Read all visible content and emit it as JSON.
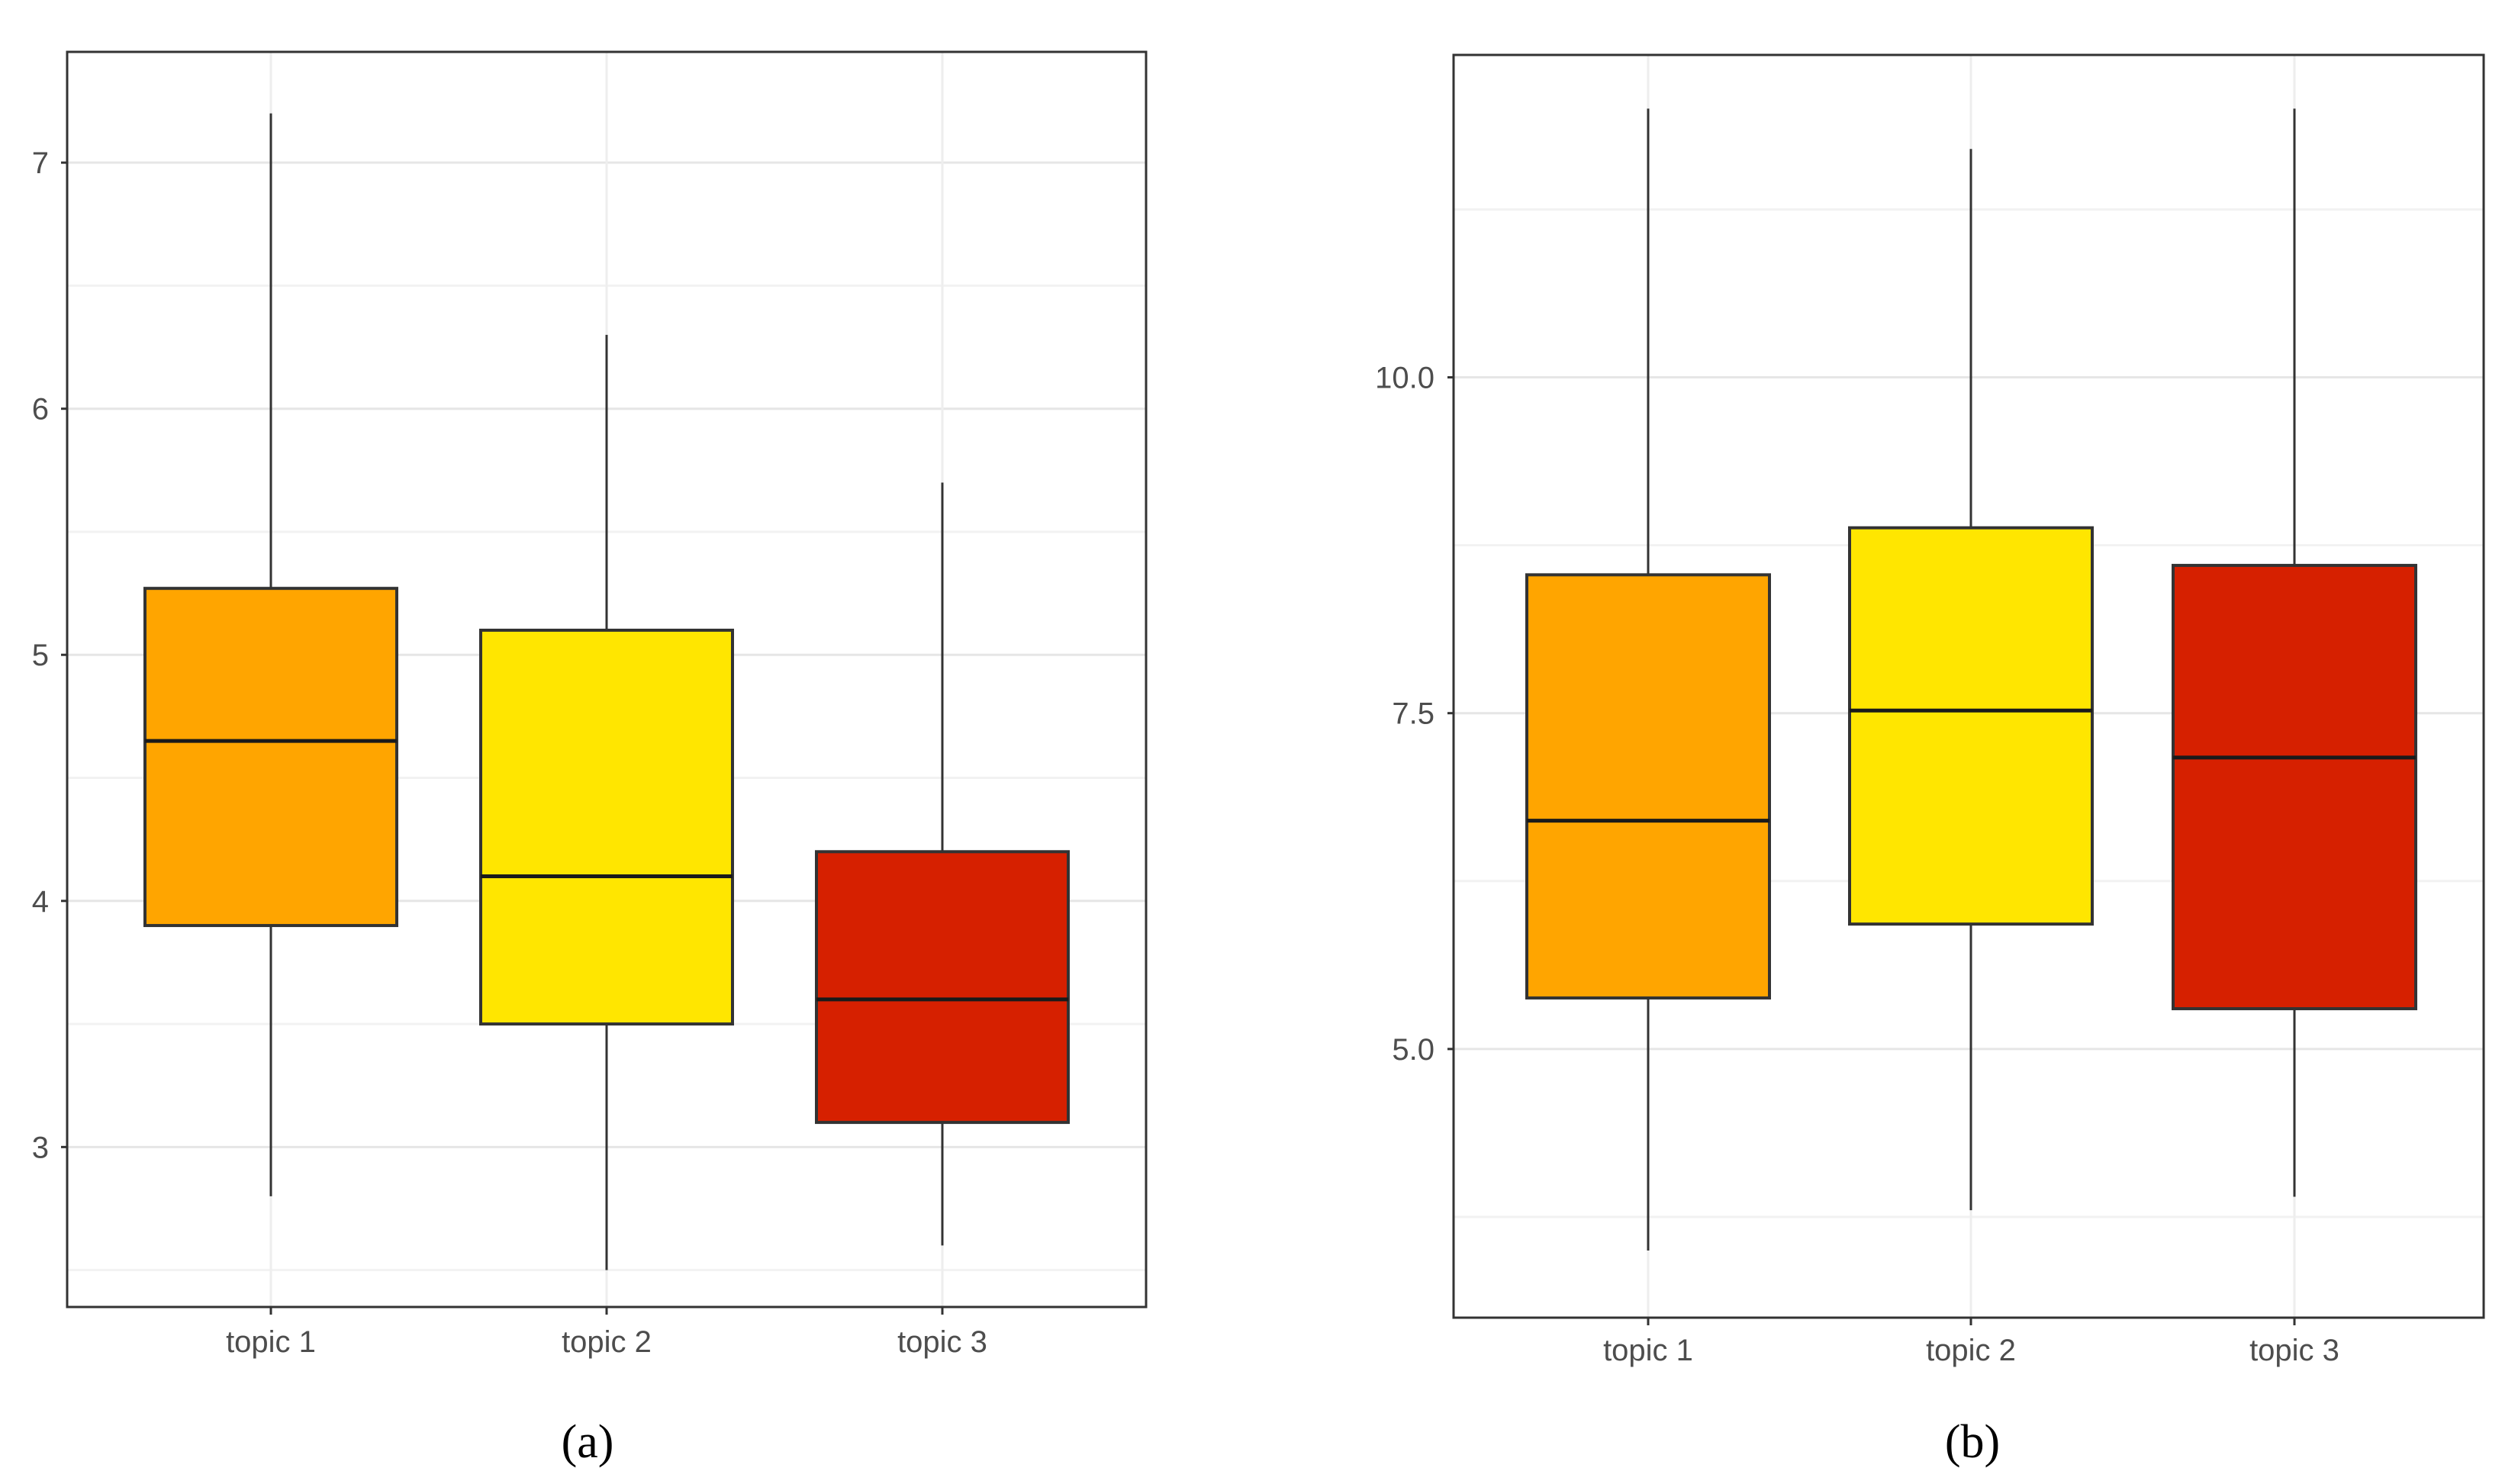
{
  "figure_labels": [
    "(a)",
    "(b)"
  ],
  "chart_data": [
    {
      "type": "boxplot",
      "panel": "(a)",
      "title": "",
      "xlabel": "",
      "ylabel": "",
      "categories": [
        "topic 1",
        "topic 2",
        "topic 3"
      ],
      "colors": [
        "#FFA500",
        "#FFE600",
        "#D62000"
      ],
      "ylim": [
        2.35,
        7.45
      ],
      "yticks": [
        3,
        4,
        5,
        6,
        7
      ],
      "ytick_labels": [
        "3",
        "4",
        "5",
        "6",
        "7"
      ],
      "minor_yticks": [
        2.5,
        3.5,
        4.5,
        5.5,
        6.5
      ],
      "grid": true,
      "boxes": [
        {
          "name": "topic 1",
          "whisker_low": 2.8,
          "q1": 3.9,
          "median": 4.65,
          "q3": 5.27,
          "whisker_high": 7.2
        },
        {
          "name": "topic 2",
          "whisker_low": 2.5,
          "q1": 3.5,
          "median": 4.1,
          "q3": 5.1,
          "whisker_high": 6.3
        },
        {
          "name": "topic 3",
          "whisker_low": 2.6,
          "q1": 3.1,
          "median": 3.6,
          "q3": 4.2,
          "whisker_high": 5.7
        }
      ]
    },
    {
      "type": "boxplot",
      "panel": "(b)",
      "title": "",
      "xlabel": "",
      "ylabel": "",
      "categories": [
        "topic 1",
        "topic 2",
        "topic 3"
      ],
      "colors": [
        "#FFA500",
        "#FFE600",
        "#D62000"
      ],
      "ylim": [
        3.0,
        12.4
      ],
      "yticks": [
        5.0,
        7.5,
        10.0
      ],
      "ytick_labels": [
        "5.0",
        "7.5",
        "10.0"
      ],
      "minor_yticks": [
        3.75,
        6.25,
        8.75,
        11.25
      ],
      "grid": true,
      "boxes": [
        {
          "name": "topic 1",
          "whisker_low": 3.5,
          "q1": 5.38,
          "median": 6.7,
          "q3": 8.53,
          "whisker_high": 12.0
        },
        {
          "name": "topic 2",
          "whisker_low": 3.8,
          "q1": 5.93,
          "median": 7.52,
          "q3": 8.88,
          "whisker_high": 11.7
        },
        {
          "name": "topic 3",
          "whisker_low": 3.9,
          "q1": 5.3,
          "median": 7.17,
          "q3": 8.6,
          "whisker_high": 12.0
        }
      ]
    }
  ]
}
